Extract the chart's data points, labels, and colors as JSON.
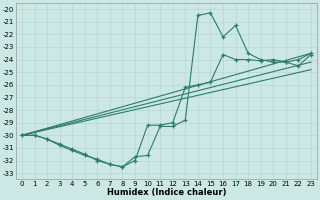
{
  "xlabel": "Humidex (Indice chaleur)",
  "background_color": "#cce8e4",
  "line_color": "#2d7a6e",
  "ylim": [
    -33.5,
    -19.5
  ],
  "xlim": [
    -0.5,
    23.5
  ],
  "yticks": [
    -20,
    -21,
    -22,
    -23,
    -24,
    -25,
    -26,
    -27,
    -28,
    -29,
    -30,
    -31,
    -32,
    -33
  ],
  "xticks": [
    0,
    1,
    2,
    3,
    4,
    5,
    6,
    7,
    8,
    9,
    10,
    11,
    12,
    13,
    14,
    15,
    16,
    17,
    18,
    19,
    20,
    21,
    22,
    23
  ],
  "series1_x": [
    0,
    1,
    2,
    3,
    4,
    5,
    6,
    7,
    8,
    9,
    10,
    11,
    12,
    13,
    14,
    15,
    16,
    17,
    18,
    19,
    20,
    21,
    22,
    23
  ],
  "series1_y": [
    -30.0,
    -30.0,
    -30.3,
    -30.7,
    -31.1,
    -31.5,
    -32.0,
    -32.3,
    -32.5,
    -32.0,
    -29.2,
    -29.2,
    -29.0,
    -26.2,
    -26.0,
    -25.8,
    -23.6,
    -24.0,
    -24.0,
    -24.1,
    -24.0,
    -24.2,
    -24.0,
    -23.5
  ],
  "series2_x": [
    0,
    1,
    2,
    3,
    4,
    5,
    6,
    7,
    8,
    9,
    10,
    11,
    12,
    13,
    14,
    15,
    16,
    17,
    18,
    19,
    20,
    21,
    22,
    23
  ],
  "series2_y": [
    -30.0,
    -30.0,
    -30.3,
    -30.8,
    -31.2,
    -31.6,
    -31.9,
    -32.3,
    -32.5,
    -31.7,
    -31.6,
    -29.3,
    -29.3,
    -28.8,
    -20.5,
    -20.3,
    -22.2,
    -21.3,
    -23.5,
    -24.0,
    -24.2,
    -24.2,
    -24.5,
    -23.6
  ],
  "line1_x": [
    0,
    23
  ],
  "line1_y": [
    -30.0,
    -23.5
  ],
  "line2_x": [
    0,
    23
  ],
  "line2_y": [
    -30.0,
    -24.2
  ],
  "line3_x": [
    0,
    23
  ],
  "line3_y": [
    -30.0,
    -24.8
  ]
}
